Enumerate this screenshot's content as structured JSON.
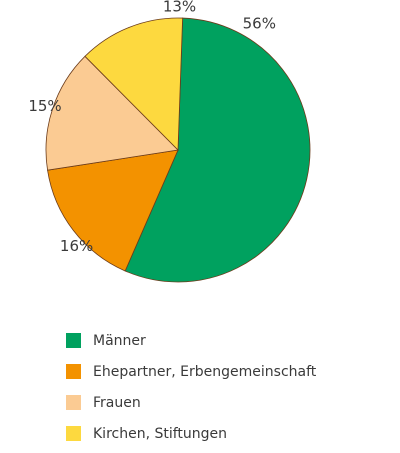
{
  "chart_data": {
    "type": "pie",
    "title": "",
    "categories": [
      "Männer",
      "Ehepartner, Erbengemeinschaft",
      "Frauen",
      "Kirchen, Stiftungen"
    ],
    "values": [
      56,
      16,
      15,
      13
    ],
    "value_labels": [
      "56%",
      "16%",
      "15%",
      "13%"
    ],
    "colors": [
      "#00a15f",
      "#f39200",
      "#fbcb93",
      "#fdd93f"
    ],
    "start_angle_deg": 2,
    "direction": "clockwise",
    "legend": {
      "position": "bottom-left",
      "entries": [
        "Männer",
        "Ehepartner, Erbengemeinschaft",
        "Frauen",
        "Kirchen, Stiftungen"
      ]
    }
  }
}
